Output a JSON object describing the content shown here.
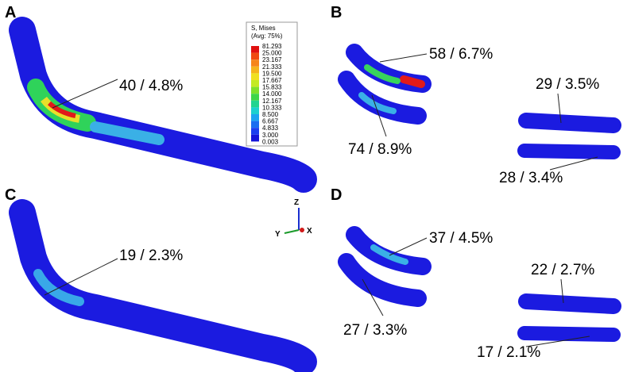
{
  "panels": [
    {
      "label": "A",
      "annotations": [
        "40 / 4.8%"
      ]
    },
    {
      "label": "B",
      "annotations": [
        "58 / 6.7%",
        "74 / 8.9%",
        "29 / 3.5%",
        "28 / 3.4%"
      ]
    },
    {
      "label": "C",
      "annotations": [
        "19 / 2.3%"
      ]
    },
    {
      "label": "D",
      "annotations": [
        "37 / 4.5%",
        "27 / 3.3%",
        "22 / 2.7%",
        "17 / 2.1%"
      ]
    }
  ],
  "legend": {
    "title": [
      "S, Mises",
      "(Avg: 75%)"
    ],
    "values": [
      "81.293",
      "25.000",
      "23.167",
      "21.333",
      "19.500",
      "17.667",
      "15.833",
      "14.000",
      "12.167",
      "10.333",
      "8.500",
      "6.667",
      "4.833",
      "3.000",
      "0.003"
    ]
  },
  "triad": {
    "z": "Z",
    "y": "Y",
    "x": "X"
  }
}
